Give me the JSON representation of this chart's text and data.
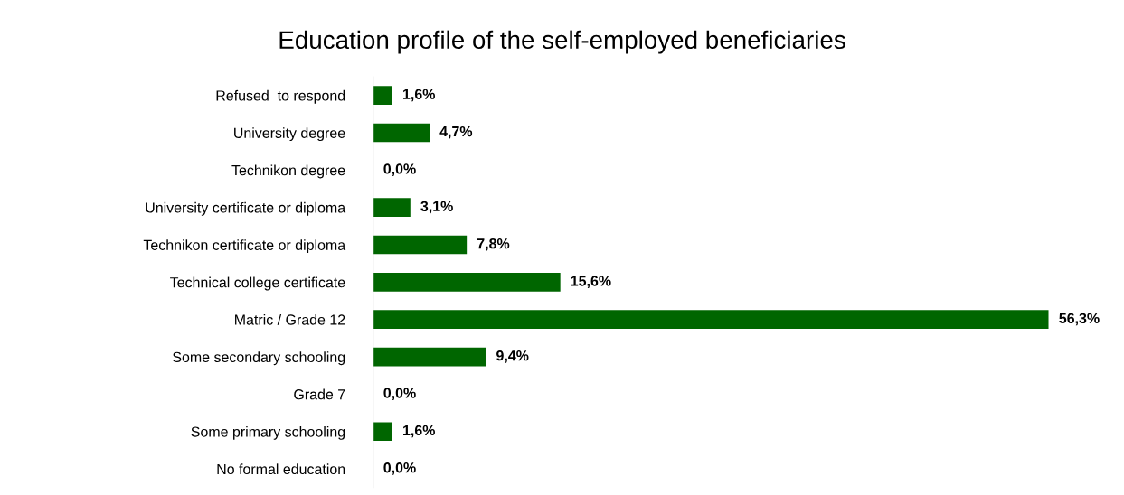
{
  "chart_data": {
    "type": "bar",
    "orientation": "horizontal",
    "title": "Education profile of the self-employed beneficiaries",
    "categories": [
      "Refused  to respond",
      "University degree",
      "Technikon degree",
      "University certificate or diploma",
      "Technikon certificate or diploma",
      "Technical college certificate",
      "Matric / Grade 12",
      "Some secondary schooling",
      "Grade 7",
      "Some primary schooling",
      "No formal education"
    ],
    "values": [
      1.6,
      4.7,
      0.0,
      3.1,
      7.8,
      15.6,
      56.3,
      9.4,
      0.0,
      1.6,
      0.0
    ],
    "value_labels": [
      "1,6%",
      "4,7%",
      "0,0%",
      "3,1%",
      "7,8%",
      "15,6%",
      "56,3%",
      "9,4%",
      "0,0%",
      "1,6%",
      "0,0%"
    ],
    "color": "#006600",
    "grid": false,
    "legend": false
  }
}
